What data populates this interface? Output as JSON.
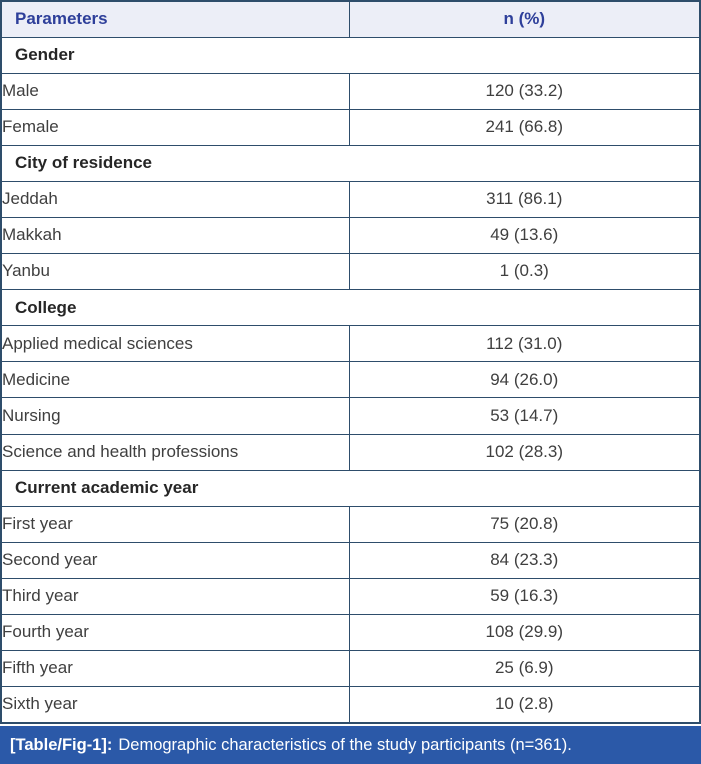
{
  "table": {
    "columns": [
      "Parameters",
      "n (%)"
    ],
    "sections": [
      {
        "label": "Gender",
        "rows": [
          {
            "label": "Male",
            "value": "120 (33.2)"
          },
          {
            "label": "Female",
            "value": "241 (66.8)"
          }
        ]
      },
      {
        "label": "City of residence",
        "rows": [
          {
            "label": "Jeddah",
            "value": "311 (86.1)"
          },
          {
            "label": "Makkah",
            "value": "49 (13.6)"
          },
          {
            "label": "Yanbu",
            "value": "1 (0.3)"
          }
        ]
      },
      {
        "label": "College",
        "rows": [
          {
            "label": "Applied medical sciences",
            "value": "112 (31.0)"
          },
          {
            "label": "Medicine",
            "value": "94 (26.0)"
          },
          {
            "label": "Nursing",
            "value": "53 (14.7)"
          },
          {
            "label": "Science and health professions",
            "value": "102 (28.3)"
          }
        ]
      },
      {
        "label": "Current academic year",
        "rows": [
          {
            "label": "First year",
            "value": "75 (20.8)"
          },
          {
            "label": "Second year",
            "value": "84 (23.3)"
          },
          {
            "label": "Third year",
            "value": "59 (16.3)"
          },
          {
            "label": "Fourth year",
            "value": "108 (29.9)"
          },
          {
            "label": "Fifth year",
            "value": "25 (6.9)"
          },
          {
            "label": "Sixth year",
            "value": "10 (2.8)"
          }
        ]
      }
    ],
    "caption": {
      "tag": "[Table/Fig-1]:",
      "text": "Demographic characteristics of the study participants (n=361)."
    }
  },
  "colors": {
    "border": "#2e4d6b",
    "header_bg": "#eceef7",
    "header_text": "#2e3f9a",
    "body_text": "#3f3f3f",
    "section_text": "#262626",
    "caption_bg": "#2b59a8",
    "caption_text": "#ffffff"
  }
}
